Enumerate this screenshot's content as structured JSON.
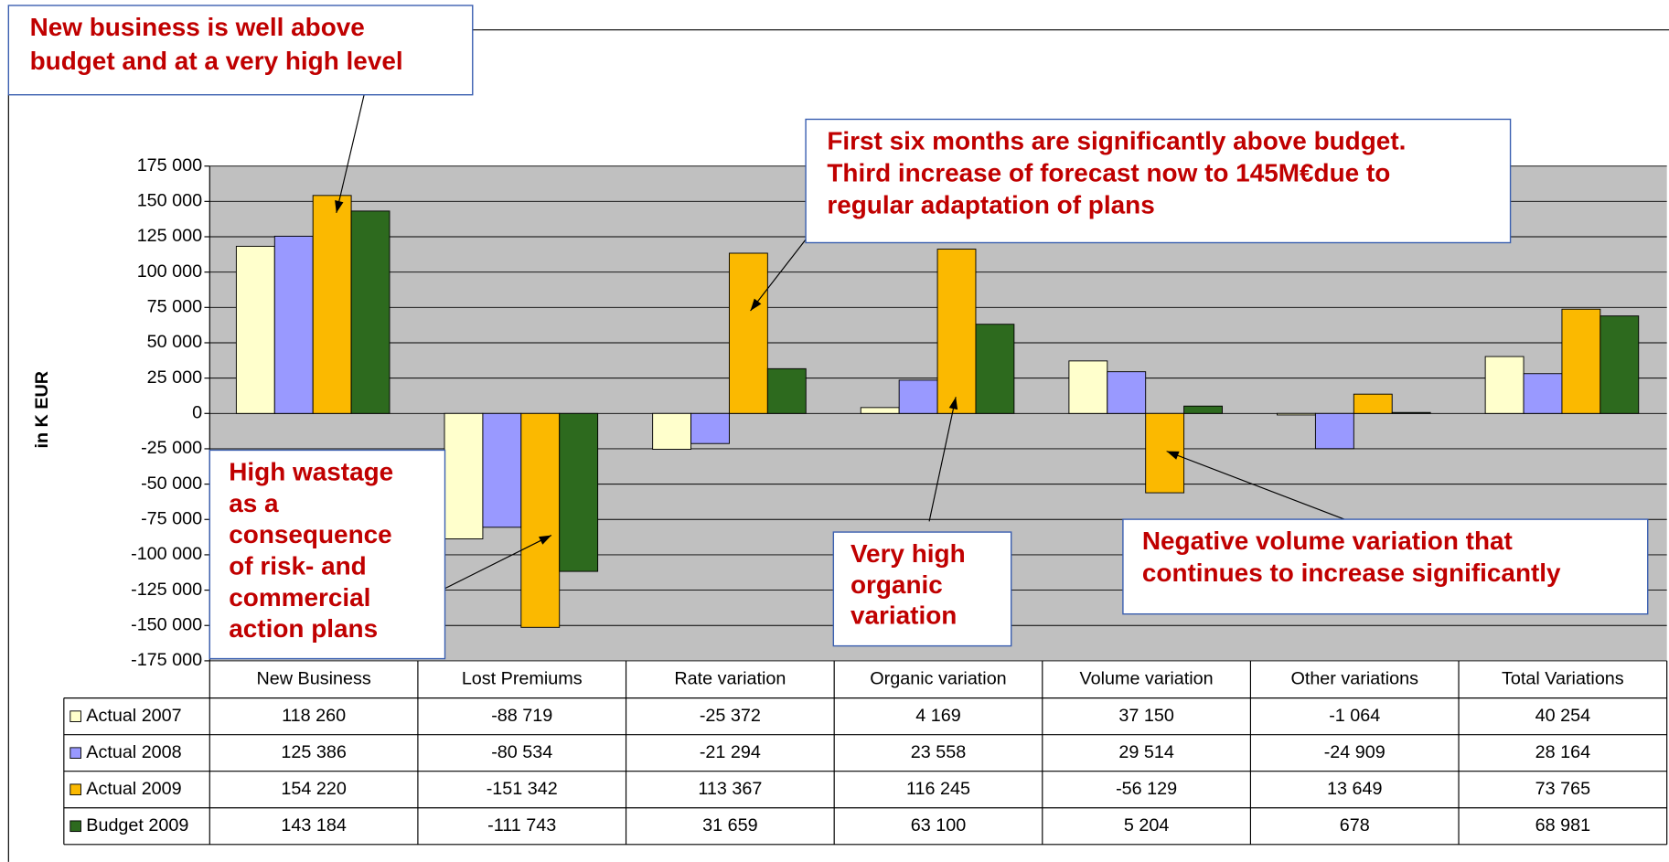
{
  "chart_data": {
    "type": "bar",
    "y_axis_label": "in K EUR",
    "categories": [
      "New Business",
      "Lost Premiums",
      "Rate variation",
      "Organic variation",
      "Volume variation",
      "Other variations",
      "Total Variations"
    ],
    "series": [
      {
        "name": "Actual 2007",
        "color": "#ffffcc",
        "values": [
          118260,
          -88719,
          -25372,
          4169,
          37150,
          -1064,
          40254
        ],
        "value_labels": [
          "118 260",
          "-88 719",
          "-25 372",
          "4 169",
          "37 150",
          "-1 064",
          "40 254"
        ]
      },
      {
        "name": "Actual 2008",
        "color": "#9999ff",
        "values": [
          125386,
          -80534,
          -21294,
          23558,
          29514,
          -24909,
          28164
        ],
        "value_labels": [
          "125 386",
          "-80 534",
          "-21 294",
          "23 558",
          "29 514",
          "-24 909",
          "28 164"
        ]
      },
      {
        "name": "Actual 2009",
        "color": "#fbb900",
        "values": [
          154220,
          -151342,
          113367,
          116245,
          -56129,
          13649,
          73765
        ],
        "value_labels": [
          "154 220",
          "-151 342",
          "113 367",
          "116 245",
          "-56 129",
          "13 649",
          "73 765"
        ]
      },
      {
        "name": "Budget 2009",
        "color": "#2d6a1e",
        "values": [
          143184,
          -111743,
          31659,
          63100,
          5204,
          678,
          68981
        ],
        "value_labels": [
          "143 184",
          "-111 743",
          "31 659",
          "63 100",
          "5 204",
          "678",
          "68 981"
        ]
      }
    ],
    "ylim": [
      -175000,
      175000
    ],
    "yticks": [
      {
        "value": -175000,
        "label": "-175 000"
      },
      {
        "value": -150000,
        "label": "-150 000"
      },
      {
        "value": -125000,
        "label": "-125 000"
      },
      {
        "value": -100000,
        "label": "-100 000"
      },
      {
        "value": -75000,
        "label": "-75 000"
      },
      {
        "value": -50000,
        "label": "-50 000"
      },
      {
        "value": -25000,
        "label": "-25 000"
      },
      0,
      {
        "value": 25000,
        "label": "25 000"
      },
      {
        "value": 50000,
        "label": "50 000"
      },
      {
        "value": 75000,
        "label": "75 000"
      },
      {
        "value": 100000,
        "label": "100 000"
      },
      {
        "value": 125000,
        "label": "125 000"
      },
      {
        "value": 150000,
        "label": "150 000"
      },
      {
        "value": 175000,
        "label": "175 000"
      }
    ],
    "grid": true,
    "annotations": [
      {
        "lines": [
          "New business is well above",
          "budget and at a very high level"
        ]
      },
      {
        "lines": [
          "First six months are significantly above budget.",
          "Third increase of forecast now to 145M€due to",
          "regular adaptation of plans"
        ]
      },
      {
        "lines": [
          "High wastage",
          "as a",
          "consequence",
          "of risk- and",
          "commercial",
          "action plans"
        ]
      },
      {
        "lines": [
          "Very high",
          "organic",
          "variation"
        ]
      },
      {
        "lines": [
          "Negative volume variation that",
          "continues to increase significantly"
        ]
      }
    ]
  }
}
